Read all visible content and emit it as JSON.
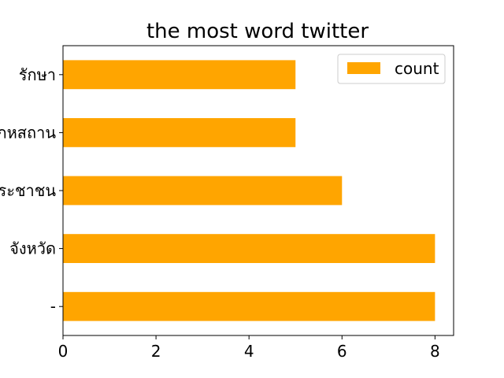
{
  "chart_data": {
    "type": "bar",
    "orientation": "horizontal",
    "title": "the most word twitter",
    "categories": [
      "-",
      "จังหวัด",
      "ประชาชน",
      "อุทยานแห่งชาติ/อุทกหสถาน",
      "รักษา"
    ],
    "series": [
      {
        "name": "count",
        "color": "#FFA500",
        "values": [
          8,
          8,
          6,
          5,
          5
        ]
      }
    ],
    "xlim": [
      0,
      8.4
    ],
    "xticks": [
      0,
      2,
      4,
      6,
      8
    ],
    "xlabel": "",
    "ylabel": "",
    "grid": false,
    "legend_position": "top-right"
  }
}
